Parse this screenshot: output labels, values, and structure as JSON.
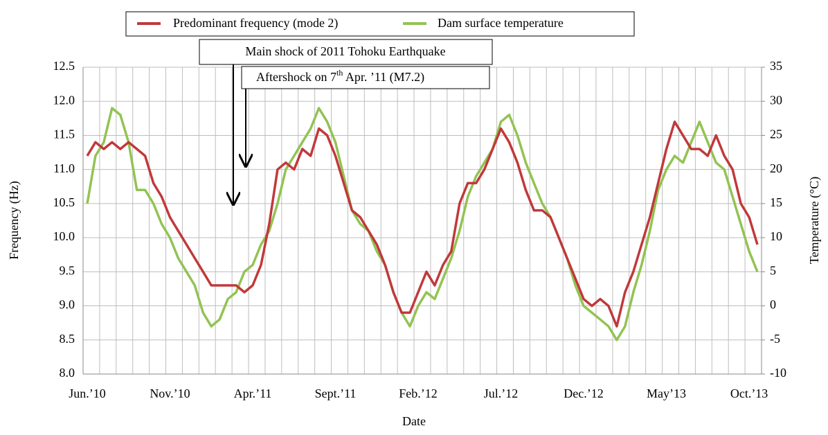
{
  "chart_data": {
    "type": "line",
    "x_label": "Date",
    "y_label": "Frequency (Hz)",
    "y2_label": "Temperature (°C)",
    "categories": [
      "Jun.’10",
      null,
      null,
      null,
      null,
      null,
      null,
      null,
      null,
      null,
      "Nov.’10",
      null,
      null,
      null,
      null,
      null,
      null,
      null,
      null,
      null,
      "Apr.’11",
      null,
      null,
      null,
      null,
      null,
      null,
      null,
      null,
      null,
      "Sept.’11",
      null,
      null,
      null,
      null,
      null,
      null,
      null,
      null,
      null,
      "Feb.’12",
      null,
      null,
      null,
      null,
      null,
      null,
      null,
      null,
      null,
      "Jul.’12",
      null,
      null,
      null,
      null,
      null,
      null,
      null,
      null,
      null,
      "Dec.’12",
      null,
      null,
      null,
      null,
      null,
      null,
      null,
      null,
      null,
      "May’13",
      null,
      null,
      null,
      null,
      null,
      null,
      null,
      null,
      null,
      "Oct.’13",
      null
    ],
    "series": [
      {
        "name": "Predominant frequency (mode 2)",
        "color": "#c0393b",
        "axis": "y",
        "values": [
          11.2,
          11.4,
          11.3,
          11.4,
          11.3,
          11.4,
          11.3,
          11.2,
          10.8,
          10.6,
          10.3,
          10.1,
          9.9,
          9.7,
          9.5,
          9.3,
          9.3,
          9.3,
          9.3,
          9.2,
          9.3,
          9.6,
          10.2,
          11.0,
          11.1,
          11.0,
          11.3,
          11.2,
          11.6,
          11.5,
          11.2,
          10.8,
          10.4,
          10.3,
          10.1,
          9.9,
          9.6,
          9.2,
          8.9,
          8.9,
          9.2,
          9.5,
          9.3,
          9.6,
          9.8,
          10.5,
          10.8,
          10.8,
          11.0,
          11.3,
          11.6,
          11.4,
          11.1,
          10.7,
          10.4,
          10.4,
          10.3,
          10.0,
          9.7,
          9.4,
          9.1,
          9.0,
          9.1,
          9.0,
          8.7,
          9.2,
          9.5,
          9.9,
          10.3,
          10.8,
          11.3,
          11.7,
          11.5,
          11.3,
          11.3,
          11.2,
          11.5,
          11.2,
          11.0,
          10.5,
          10.3,
          9.9
        ]
      },
      {
        "name": "Dam surface temperature",
        "color": "#92c353",
        "axis": "y2",
        "values": [
          15,
          22,
          24,
          29,
          28,
          24,
          17,
          17,
          15,
          12,
          10,
          7,
          5,
          3,
          -1,
          -3,
          -2,
          1,
          2,
          5,
          6,
          9,
          11,
          15,
          20,
          22,
          24,
          26,
          29,
          27,
          24,
          19,
          14,
          12,
          11,
          8,
          6,
          2,
          -1,
          -3,
          0,
          2,
          1,
          4,
          7,
          11,
          16,
          19,
          21,
          23,
          27,
          28,
          25,
          21,
          18,
          15,
          13,
          10,
          7,
          3,
          0,
          -1,
          -2,
          -3,
          -5,
          -3,
          2,
          6,
          11,
          17,
          20,
          22,
          21,
          24,
          27,
          24,
          21,
          20,
          16,
          12,
          8,
          5
        ]
      }
    ],
    "ylim": [
      8,
      12.5
    ],
    "yticks": [
      {
        "value": 8,
        "label": "8.0"
      },
      8.5,
      {
        "value": 9,
        "label": "9.0"
      },
      9.5,
      {
        "value": 10,
        "label": "10.0"
      },
      10.5,
      {
        "value": 11,
        "label": "11.0"
      },
      11.5,
      {
        "value": 12,
        "label": "12.0"
      },
      12.5
    ],
    "y2lim": [
      -10,
      35
    ],
    "y2ticks": [
      -10,
      -5,
      0,
      5,
      10,
      15,
      20,
      25,
      30,
      35
    ],
    "grid": true,
    "annotations": [
      {
        "text": "Main shock of 2011 Tohoku Earthquake"
      },
      {
        "text": "Aftershock on 7",
        "sup": "th",
        "text2": " Apr. ’11 (M7.2)"
      }
    ]
  }
}
